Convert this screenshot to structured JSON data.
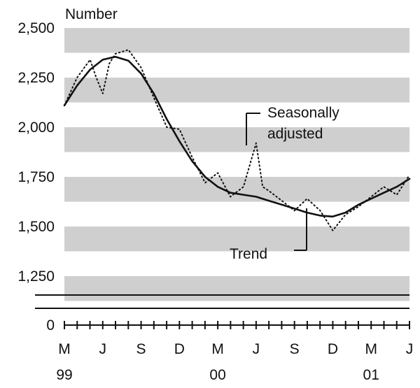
{
  "chart_data": {
    "type": "line",
    "ylabel": "Number",
    "y_ticks": [
      "0",
      "1,250",
      "1,500",
      "1,750",
      "2,000",
      "2,250",
      "2,500"
    ],
    "y_tick_values": [
      0,
      1250,
      1500,
      1750,
      2000,
      2250,
      2500
    ],
    "ylim": [
      1100,
      2500
    ],
    "axis_break": true,
    "grid": "alternating horizontal bands",
    "x_ticks": [
      {
        "month": "M",
        "year": "99",
        "index": 0
      },
      {
        "month": "J",
        "year": "",
        "index": 1
      },
      {
        "month": "S",
        "year": "",
        "index": 2
      },
      {
        "month": "D",
        "year": "",
        "index": 3
      },
      {
        "month": "M",
        "year": "00",
        "index": 4
      },
      {
        "month": "J",
        "year": "",
        "index": 5
      },
      {
        "month": "S",
        "year": "",
        "index": 6
      },
      {
        "month": "D",
        "year": "",
        "index": 7
      },
      {
        "month": "M",
        "year": "01",
        "index": 8
      },
      {
        "month": "J",
        "year": "",
        "index": 9
      }
    ],
    "series": [
      {
        "name": "Trend",
        "style": "solid",
        "x": [
          0,
          0.33,
          0.67,
          1,
          1.33,
          1.67,
          2,
          2.33,
          2.67,
          3,
          3.33,
          3.67,
          4,
          4.33,
          4.67,
          5,
          5.33,
          5.67,
          6,
          6.33,
          6.67,
          7,
          7.33,
          7.67,
          8,
          8.33,
          8.67,
          9
        ],
        "values": [
          2110,
          2210,
          2290,
          2340,
          2355,
          2335,
          2270,
          2170,
          2040,
          1930,
          1830,
          1750,
          1700,
          1670,
          1660,
          1650,
          1630,
          1610,
          1590,
          1570,
          1555,
          1550,
          1570,
          1610,
          1640,
          1670,
          1700,
          1740
        ]
      },
      {
        "name": "Seasonally adjusted",
        "style": "dotted",
        "x": [
          0,
          0.33,
          0.67,
          0.83,
          1,
          1.17,
          1.33,
          1.67,
          2,
          2.33,
          2.67,
          3,
          3.33,
          3.67,
          4,
          4.33,
          4.67,
          5,
          5.17,
          5.33,
          5.67,
          6,
          6.33,
          6.67,
          7,
          7.33,
          7.67,
          8,
          8.33,
          8.67,
          9
        ],
        "values": [
          2110,
          2250,
          2340,
          2250,
          2170,
          2320,
          2370,
          2390,
          2300,
          2150,
          2000,
          1990,
          1850,
          1720,
          1770,
          1650,
          1700,
          1920,
          1700,
          1680,
          1630,
          1580,
          1640,
          1580,
          1480,
          1560,
          1600,
          1650,
          1700,
          1660,
          1760
        ]
      }
    ],
    "annotations": {
      "seasonally_adjusted_line1": "Seasonally",
      "seasonally_adjusted_line2": "adjusted",
      "trend": "Trend"
    }
  }
}
